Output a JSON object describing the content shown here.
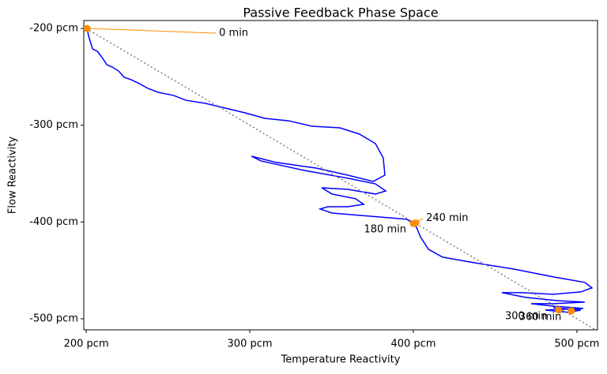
{
  "chart_data": {
    "type": "line",
    "title": "Passive Feedback Phase Space",
    "x_label": "Temperature Reactivity",
    "y_label": "Flow Reactivity",
    "xlim": [
      198.5,
      512.6
    ],
    "ylim": [
      -511.4,
      -191.8
    ],
    "xticks": [
      {
        "value": 200,
        "label": "200 pcm"
      },
      {
        "value": 300,
        "label": "300 pcm"
      },
      {
        "value": 400,
        "label": "400 pcm"
      },
      {
        "value": 500,
        "label": "500 pcm"
      }
    ],
    "yticks": [
      {
        "value": -200,
        "label": "-200 pcm"
      },
      {
        "value": -300,
        "label": "-300 pcm"
      },
      {
        "value": -400,
        "label": "-400 pcm"
      },
      {
        "value": -500,
        "label": "-500 pcm"
      }
    ],
    "grid": false,
    "series": [
      {
        "color": "#0000ff",
        "style": "solid",
        "x": [
          200.5,
          201.4,
          202.4,
          203.9,
          206.8,
          210.1,
          212.6,
          215.9,
          219.8,
          223.2,
          227.5,
          232.4,
          237.7,
          244,
          253.6,
          260.9,
          272.9,
          285,
          297.1,
          309.2,
          323.7,
          338.2,
          355.1,
          367.1,
          376.8,
          381.6,
          382.6,
          375.4,
          359.9,
          340.6,
          316.4,
          301,
          306.8,
          333.3,
          359.9,
          376.8,
          383.1,
          376.8,
          359.9,
          344,
          350.2,
          364.7,
          369.6,
          359.9,
          347.8,
          343,
          350.2,
          396.1,
          400,
          401.9,
          404.3,
          409.2,
          417.9,
          437.2,
          461.4,
          485.5,
          504.8,
          509.2,
          502.4,
          485.5,
          466.2,
          454.1,
          468.6,
          487.9,
          504.8,
          485.5,
          472,
          485.5,
          503.9,
          480.7,
          495.2,
          502.4,
          485.5,
          491.3
        ],
        "values": [
          -200,
          -207.3,
          -213,
          -221.2,
          -223.6,
          -231,
          -237.5,
          -239.9,
          -244,
          -250.5,
          -253,
          -257,
          -261.9,
          -266,
          -269.3,
          -274.2,
          -277.4,
          -282.3,
          -287.2,
          -292.9,
          -295.4,
          -301.1,
          -302.7,
          -309.2,
          -319,
          -333.7,
          -351.6,
          -358.1,
          -351.6,
          -344.3,
          -338.5,
          -332,
          -336.9,
          -346.7,
          -354.8,
          -360.6,
          -367.9,
          -371.1,
          -366.3,
          -364.6,
          -371.1,
          -376,
          -381.7,
          -384.2,
          -384.2,
          -386.6,
          -390.7,
          -397.2,
          -401.3,
          -405.4,
          -415.2,
          -428.2,
          -436.3,
          -442.1,
          -448.6,
          -456.7,
          -462.4,
          -468.1,
          -472.2,
          -474.7,
          -473,
          -473,
          -477.9,
          -481.2,
          -482.8,
          -484.4,
          -484.4,
          -486.9,
          -489.3,
          -491,
          -493.4,
          -491,
          -488.5,
          -489.3
        ]
      },
      {
        "color": "#808080",
        "style": "dotted",
        "x": [
          200,
          512
        ],
        "values": [
          -200,
          -512
        ]
      }
    ],
    "marker_color": "#ff8c00",
    "annotations": [
      {
        "text": "0 min",
        "x": 200.5,
        "y": -200
      },
      {
        "text": "180 min",
        "x": 400,
        "y": -401.5
      },
      {
        "text": "240 min",
        "x": 401.5,
        "y": -401
      },
      {
        "text": "300 min",
        "x": 488.9,
        "y": -491
      },
      {
        "text": "360 min",
        "x": 496.6,
        "y": -491.8
      }
    ]
  }
}
